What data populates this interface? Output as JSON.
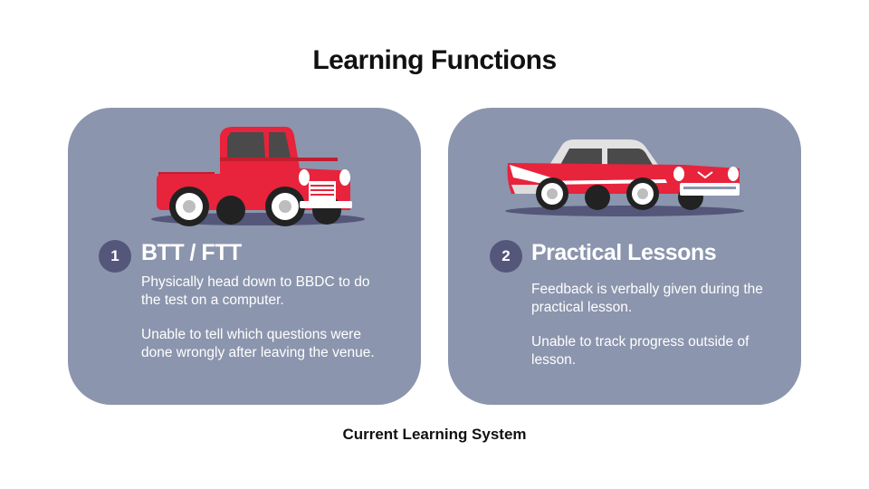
{
  "slide": {
    "title": "Learning Functions",
    "caption": "Current Learning System"
  },
  "cards": [
    {
      "number": "1",
      "title": "BTT / FTT",
      "icon": "pickup-truck-icon",
      "paragraphs": [
        "Physically head down to BBDC to do the test on a computer.",
        "Unable to tell which questions were done wrongly after leaving the venue."
      ]
    },
    {
      "number": "2",
      "title": "Practical Lessons",
      "icon": "sedan-car-icon",
      "paragraphs": [
        "Feedback is verbally given during the practical lesson.",
        "Unable to track progress outside of lesson."
      ]
    }
  ],
  "colors": {
    "card_background": "#8b95ad",
    "badge_background": "#54577a",
    "vehicle_red": "#e8233c"
  }
}
